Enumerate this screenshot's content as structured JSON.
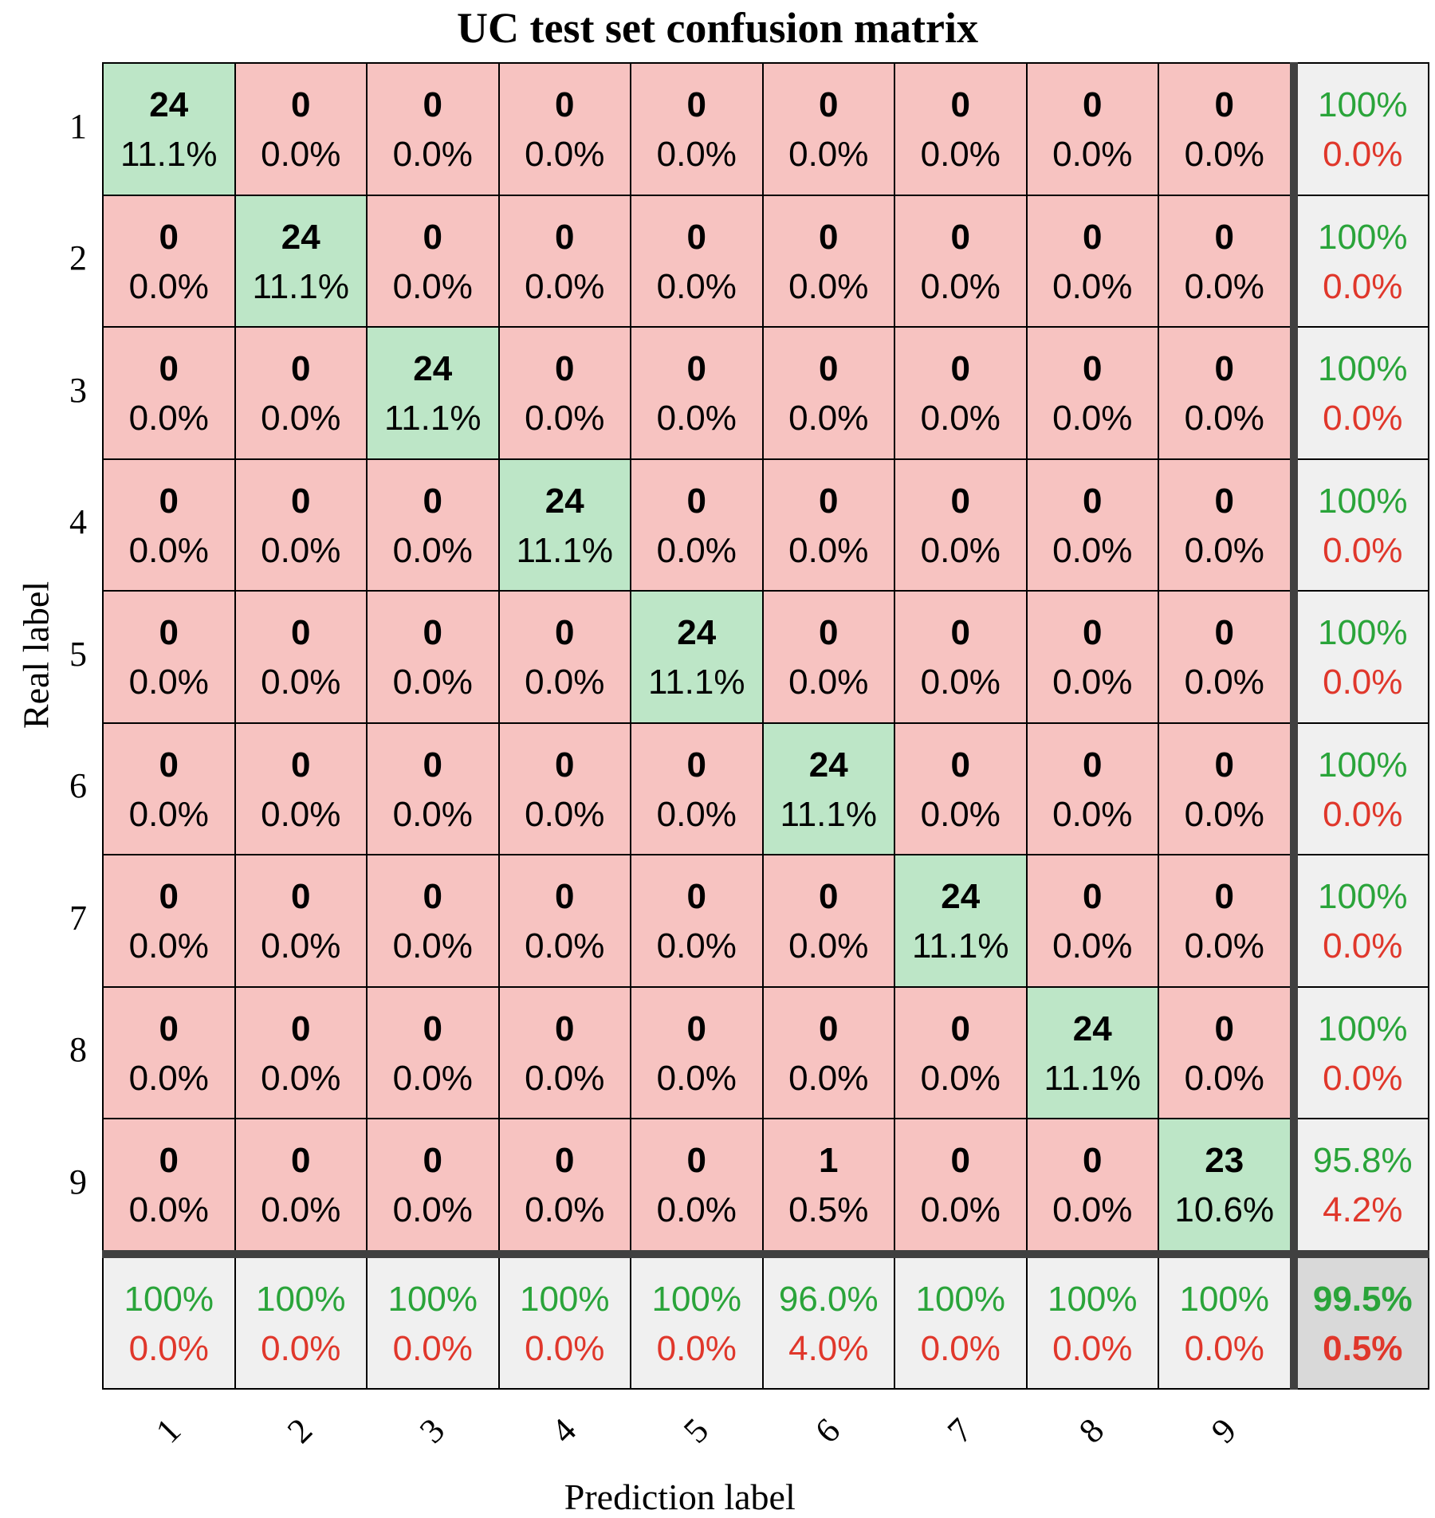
{
  "chart_data": {
    "type": "heatmap",
    "title": "UC test set confusion matrix",
    "xlabel": "Prediction label",
    "ylabel": "Real label",
    "row_labels": [
      "1",
      "2",
      "3",
      "4",
      "5",
      "6",
      "7",
      "8",
      "9"
    ],
    "col_labels": [
      "1",
      "2",
      "3",
      "4",
      "5",
      "6",
      "7",
      "8",
      "9"
    ],
    "counts": [
      [
        24,
        0,
        0,
        0,
        0,
        0,
        0,
        0,
        0
      ],
      [
        0,
        24,
        0,
        0,
        0,
        0,
        0,
        0,
        0
      ],
      [
        0,
        0,
        24,
        0,
        0,
        0,
        0,
        0,
        0
      ],
      [
        0,
        0,
        0,
        24,
        0,
        0,
        0,
        0,
        0
      ],
      [
        0,
        0,
        0,
        0,
        24,
        0,
        0,
        0,
        0
      ],
      [
        0,
        0,
        0,
        0,
        0,
        24,
        0,
        0,
        0
      ],
      [
        0,
        0,
        0,
        0,
        0,
        0,
        24,
        0,
        0
      ],
      [
        0,
        0,
        0,
        0,
        0,
        0,
        0,
        24,
        0
      ],
      [
        0,
        0,
        0,
        0,
        0,
        1,
        0,
        0,
        23
      ]
    ],
    "percents": [
      [
        "11.1%",
        "0.0%",
        "0.0%",
        "0.0%",
        "0.0%",
        "0.0%",
        "0.0%",
        "0.0%",
        "0.0%"
      ],
      [
        "0.0%",
        "11.1%",
        "0.0%",
        "0.0%",
        "0.0%",
        "0.0%",
        "0.0%",
        "0.0%",
        "0.0%"
      ],
      [
        "0.0%",
        "0.0%",
        "11.1%",
        "0.0%",
        "0.0%",
        "0.0%",
        "0.0%",
        "0.0%",
        "0.0%"
      ],
      [
        "0.0%",
        "0.0%",
        "0.0%",
        "11.1%",
        "0.0%",
        "0.0%",
        "0.0%",
        "0.0%",
        "0.0%"
      ],
      [
        "0.0%",
        "0.0%",
        "0.0%",
        "0.0%",
        "11.1%",
        "0.0%",
        "0.0%",
        "0.0%",
        "0.0%"
      ],
      [
        "0.0%",
        "0.0%",
        "0.0%",
        "0.0%",
        "0.0%",
        "11.1%",
        "0.0%",
        "0.0%",
        "0.0%"
      ],
      [
        "0.0%",
        "0.0%",
        "0.0%",
        "0.0%",
        "0.0%",
        "0.0%",
        "11.1%",
        "0.0%",
        "0.0%"
      ],
      [
        "0.0%",
        "0.0%",
        "0.0%",
        "0.0%",
        "0.0%",
        "0.0%",
        "0.0%",
        "11.1%",
        "0.0%"
      ],
      [
        "0.0%",
        "0.0%",
        "0.0%",
        "0.0%",
        "0.0%",
        "0.5%",
        "0.0%",
        "0.0%",
        "10.6%"
      ]
    ],
    "row_summary": [
      {
        "correct": "100%",
        "error": "0.0%"
      },
      {
        "correct": "100%",
        "error": "0.0%"
      },
      {
        "correct": "100%",
        "error": "0.0%"
      },
      {
        "correct": "100%",
        "error": "0.0%"
      },
      {
        "correct": "100%",
        "error": "0.0%"
      },
      {
        "correct": "100%",
        "error": "0.0%"
      },
      {
        "correct": "100%",
        "error": "0.0%"
      },
      {
        "correct": "100%",
        "error": "0.0%"
      },
      {
        "correct": "95.8%",
        "error": "4.2%"
      }
    ],
    "col_summary": [
      {
        "correct": "100%",
        "error": "0.0%"
      },
      {
        "correct": "100%",
        "error": "0.0%"
      },
      {
        "correct": "100%",
        "error": "0.0%"
      },
      {
        "correct": "100%",
        "error": "0.0%"
      },
      {
        "correct": "100%",
        "error": "0.0%"
      },
      {
        "correct": "96.0%",
        "error": "4.0%"
      },
      {
        "correct": "100%",
        "error": "0.0%"
      },
      {
        "correct": "100%",
        "error": "0.0%"
      },
      {
        "correct": "100%",
        "error": "0.0%"
      }
    ],
    "overall": {
      "correct": "99.5%",
      "error": "0.5%"
    },
    "colors": {
      "diagonal": "#bde6c7",
      "off_diagonal": "#f7c3c1",
      "summary": "#f0f0f0",
      "overall": "#d9d9d9",
      "correct_text": "#2aa43a",
      "error_text": "#e0372b",
      "count_text": "#000000",
      "divider": "#404040"
    }
  }
}
